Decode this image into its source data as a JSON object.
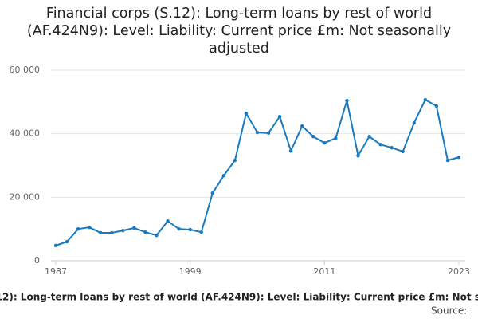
{
  "chart_data": {
    "type": "line",
    "title": "Financial corps (S.12): Long-term loans by rest of world (AF.424N9): Level: Liability: Current price £m: Not seasonally adjusted",
    "source": "Source:",
    "x": [
      1987,
      1988,
      1989,
      1990,
      1991,
      1992,
      1993,
      1994,
      1995,
      1996,
      1997,
      1998,
      1999,
      2000,
      2001,
      2002,
      2003,
      2004,
      2005,
      2006,
      2007,
      2008,
      2009,
      2010,
      2011,
      2012,
      2013,
      2014,
      2015,
      2016,
      2017,
      2018,
      2019,
      2020,
      2021,
      2022,
      2023
    ],
    "series": [
      {
        "color": "#1a7abf",
        "values": [
          4800,
          6000,
          10000,
          10500,
          8800,
          8800,
          9500,
          10300,
          9000,
          8000,
          12500,
          10000,
          9800,
          9000,
          21300,
          26800,
          31600,
          46400,
          40400,
          40200,
          45400,
          34600,
          42400,
          39100,
          37100,
          38600,
          50400,
          33100,
          39100,
          36600,
          35600,
          34400,
          43400,
          50700,
          48700,
          31600,
          32600
        ]
      }
    ],
    "xlim": [
      1987,
      2023
    ],
    "xticks": [
      1987,
      1999,
      2011,
      2023
    ],
    "ylim": [
      0,
      60000
    ],
    "yticks": [
      0,
      {
        "value": 20000,
        "label": "20 000"
      },
      {
        "value": 40000,
        "label": "40 000"
      },
      {
        "value": 60000,
        "label": "60 000"
      }
    ],
    "grid": true
  }
}
